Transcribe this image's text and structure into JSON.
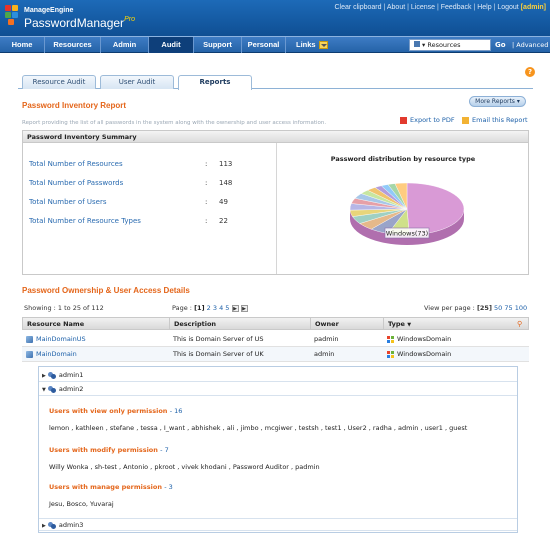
{
  "brand": {
    "small": "ManageEngine",
    "product": "PasswordManager",
    "edition": "Pro"
  },
  "toplinks": {
    "items": [
      "Clear clipboard",
      "About",
      "License",
      "Feedback",
      "Help",
      "Logout"
    ],
    "user": "[admin]"
  },
  "nav": {
    "tabs": [
      "Home",
      "Resources",
      "Admin",
      "Audit",
      "Support",
      "Personal"
    ],
    "links": "Links",
    "search_select": "Resources",
    "go": "Go",
    "advanced": "Advanced"
  },
  "subtabs": [
    "Resource Audit",
    "User Audit",
    "Reports"
  ],
  "report": {
    "title": "Password Inventory Report",
    "description": "Report providing the list of all passwords in the system along with the ownership and user access information.",
    "more_reports": "More Reports",
    "export_pdf": "Export to PDF",
    "email": "Email this Report"
  },
  "summary": {
    "header": "Password Inventory Summary",
    "rows": [
      {
        "label": "Total Number of Resources",
        "value": "113"
      },
      {
        "label": "Total Number of Passwords",
        "value": "148"
      },
      {
        "label": "Total Number of Users",
        "value": "49"
      },
      {
        "label": "Total Number of Resource Types",
        "value": "22"
      }
    ]
  },
  "chart_data": {
    "type": "pie",
    "title": "Password distribution by resource type",
    "slice_label": "Windows(73)",
    "slices": [
      {
        "label": "Windows",
        "value": 73,
        "color": "#d99ad6"
      },
      {
        "label": "",
        "value": 9,
        "color": "#cfe08a"
      },
      {
        "label": "",
        "value": 8,
        "color": "#9aa4c9"
      },
      {
        "label": "",
        "value": 7,
        "color": "#e5b98a"
      },
      {
        "label": "",
        "value": 7,
        "color": "#9fd0c3"
      },
      {
        "label": "",
        "value": 6,
        "color": "#e8d57a"
      },
      {
        "label": "",
        "value": 6,
        "color": "#b6b6e6"
      },
      {
        "label": "",
        "value": 5,
        "color": "#e6a0a8"
      },
      {
        "label": "",
        "value": 5,
        "color": "#a7c7e8"
      },
      {
        "label": "",
        "value": 4,
        "color": "#c7e6a0"
      },
      {
        "label": "",
        "value": 4,
        "color": "#f0c36d"
      },
      {
        "label": "",
        "value": 3,
        "color": "#b39ddb"
      },
      {
        "label": "",
        "value": 3,
        "color": "#90caf9"
      },
      {
        "label": "",
        "value": 3,
        "color": "#a5d6a7"
      },
      {
        "label": "",
        "value": 5,
        "color": "#ffcc80"
      }
    ]
  },
  "ownership": {
    "title": "Password Ownership & User Access Details",
    "showing": "Showing : 1 to 25 of 112",
    "page_label": "Page :",
    "pages": [
      "[1]",
      "2",
      "3",
      "4",
      "5"
    ],
    "view_per_page_label": "View per page :",
    "per_page": [
      "[25]",
      "50",
      "75",
      "100"
    ],
    "columns": [
      "Resource Name",
      "Description",
      "Owner",
      "Type"
    ],
    "rows": [
      {
        "name": "MainDomainUS",
        "description": "This is Domain Server of US",
        "owner": "padmin",
        "type": "WindowsDomain"
      },
      {
        "name": "MainDomain",
        "description": "This is Domain Server of UK",
        "owner": "admin",
        "type": "WindowsDomain"
      }
    ],
    "accounts": [
      "admin1",
      "admin2",
      "admin3"
    ],
    "permissions": [
      {
        "title": "Users with view only permission",
        "count": "- 16",
        "users": "lemon , kathleen , stefane , tessa , I_want , abhishek , ali , jimbo , mcgiwer , testsh , test1 , User2 , radha , admin , user1 , guest"
      },
      {
        "title": "Users with modify permission",
        "count": "- 7",
        "users": "Willy Wonka , sh-test , Antonio , pkroot , vivek khodani , Password Auditor , padmin"
      },
      {
        "title": "Users with manage permission",
        "count": "- 3",
        "users": "Jesu, Bosco, Yuvaraj"
      }
    ]
  }
}
